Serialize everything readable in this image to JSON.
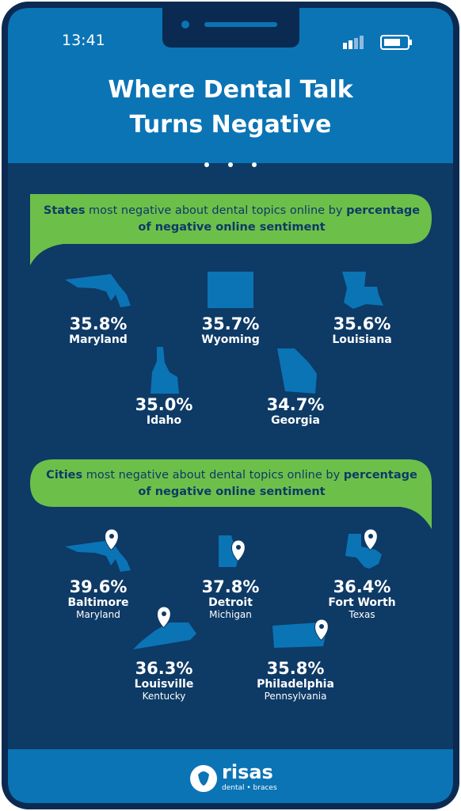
{
  "status": {
    "time": "13:41"
  },
  "header": {
    "title": "Where Dental Talk Turns Negative"
  },
  "states": {
    "heading": {
      "lead": "States",
      "middle": " most negative about dental topics online by ",
      "emphasis": "percentage of negative online sentiment"
    },
    "items": [
      {
        "value": "35.8%",
        "name": "Maryland"
      },
      {
        "value": "35.7%",
        "name": "Wyoming"
      },
      {
        "value": "35.6%",
        "name": "Louisiana"
      },
      {
        "value": "35.0%",
        "name": "Idaho"
      },
      {
        "value": "34.7%",
        "name": "Georgia"
      }
    ]
  },
  "cities": {
    "heading": {
      "lead": "Cities",
      "middle": " most negative about dental topics online by ",
      "emphasis": "percentage of negative online sentiment"
    },
    "items": [
      {
        "value": "39.6%",
        "name": "Baltimore",
        "state": "Maryland"
      },
      {
        "value": "37.8%",
        "name": "Detroit",
        "state": "Michigan"
      },
      {
        "value": "36.4%",
        "name": "Fort Worth",
        "state": "Texas"
      },
      {
        "value": "36.3%",
        "name": "Louisville",
        "state": "Kentucky"
      },
      {
        "value": "35.8%",
        "name": "Philadelphia",
        "state": "Pennsylvania"
      }
    ]
  },
  "footer": {
    "brand": "risas",
    "tagline": "dental • braces"
  }
}
